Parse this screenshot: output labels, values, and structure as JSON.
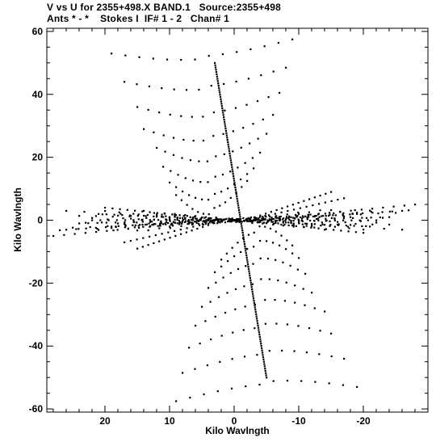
{
  "title": {
    "line1": "V vs U for 2355+498.X BAND.1   Source:2355+498",
    "line2": "Ants * - *    Stokes I  IF# 1 - 2   Chan# 1"
  },
  "chart_data": {
    "type": "scatter",
    "title": "V vs U for 2355+498.X BAND.1   Source:2355+498",
    "subtitle": "Ants * - *    Stokes I  IF# 1 - 2   Chan# 1",
    "xlabel": "Kilo Wavlngth",
    "ylabel": "Kilo Wavlngth",
    "xlim": [
      29,
      -30
    ],
    "ylim": [
      -61,
      61
    ],
    "x_ticks": [
      20,
      10,
      0,
      -10,
      -20
    ],
    "x_tick_labels": [
      "20",
      "10",
      "0",
      "-10",
      "-20"
    ],
    "y_ticks": [
      60,
      40,
      20,
      0,
      -20,
      -40,
      -60
    ],
    "y_tick_labels": [
      "60",
      "40",
      "20",
      "0",
      "-20",
      "-40",
      "-60"
    ],
    "grid": false,
    "color": "#000000",
    "arms": {
      "fan_upper": {
        "start_u": [
          19,
          17,
          15,
          14,
          12,
          11,
          10,
          8,
          7,
          6,
          4
        ],
        "start_v": [
          53,
          44,
          36,
          29,
          23,
          17,
          12,
          8,
          5,
          3,
          2
        ],
        "end_u": [
          -9,
          -6,
          -4,
          -3,
          -1
        ],
        "end_v": [
          58,
          47,
          36,
          26,
          16
        ],
        "points": 14
      },
      "center_line": {
        "u_top": 3,
        "v_top": 50,
        "u_bottom": -5,
        "v_bottom": -50,
        "points": 140
      },
      "horizontal_arm": {
        "u_left": 28,
        "u_right": -29,
        "v_spread": 7,
        "points": 260
      }
    }
  }
}
